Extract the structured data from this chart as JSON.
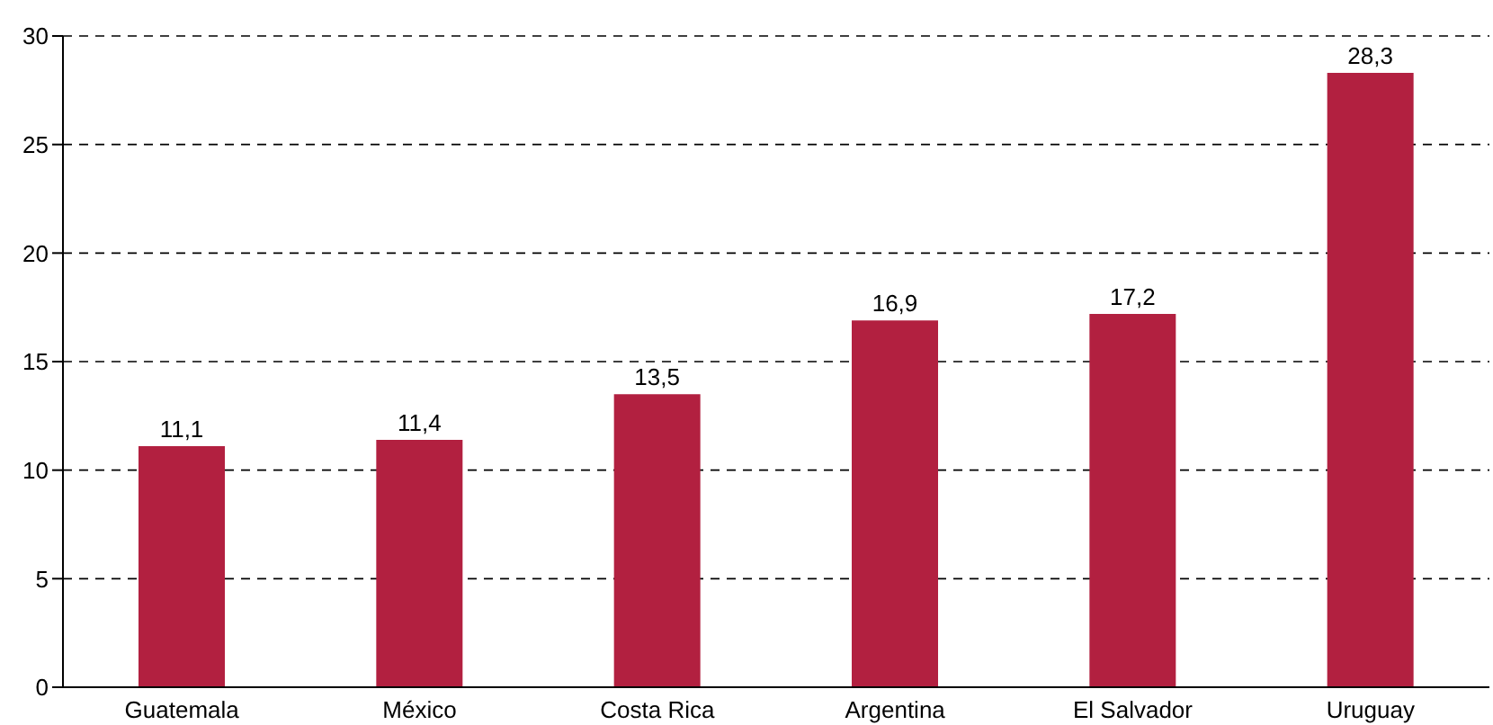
{
  "chart_data": {
    "type": "bar",
    "categories": [
      "Guatemala",
      "México",
      "Costa Rica",
      "Argentina",
      "El Salvador",
      "Uruguay"
    ],
    "values": [
      11.1,
      11.4,
      13.5,
      16.9,
      17.2,
      28.3
    ],
    "value_labels": [
      "11,1",
      "11,4",
      "13,5",
      "16,9",
      "17,2",
      "28,3"
    ],
    "color": "#b22040",
    "ylim": [
      0,
      30
    ],
    "yticks": [
      0,
      5,
      10,
      15,
      20,
      25,
      30
    ],
    "grid": "y"
  }
}
